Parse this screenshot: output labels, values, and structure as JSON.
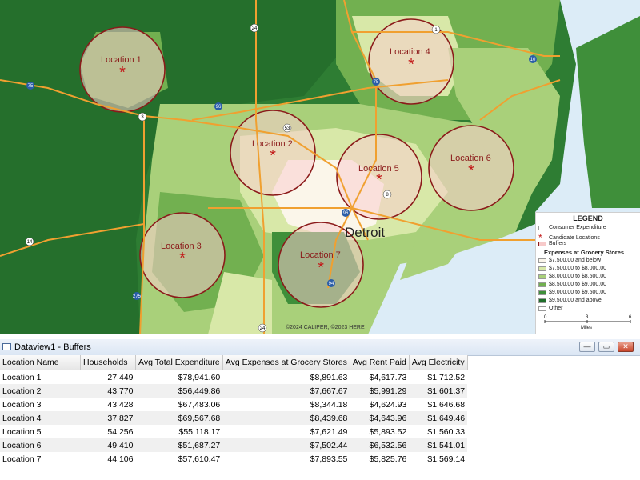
{
  "map": {
    "locations": [
      {
        "label": "Location 1"
      },
      {
        "label": "Location 2"
      },
      {
        "label": "Location 3"
      },
      {
        "label": "Location 4"
      },
      {
        "label": "Location 5"
      },
      {
        "label": "Location 6"
      },
      {
        "label": "Location 7"
      }
    ],
    "city_label": "Detroit",
    "highways": [
      "75",
      "24",
      "96",
      "3",
      "10",
      "1",
      "53",
      "96",
      "14",
      "275",
      "24",
      "75",
      "94",
      "8"
    ],
    "credit": "©2024 CALIPER, ©2023 HERE"
  },
  "legend": {
    "title": "LEGEND",
    "consumer_expenditure": "Consumer Expenditure",
    "candidate_locations": "Candidate Locations",
    "buffers": "Buffers",
    "subtitle": "Expenses at Grocery Stores",
    "classes": [
      {
        "label": "$7,500.00 and below",
        "color": "#fbf6ea"
      },
      {
        "label": "$7,500.00 to $8,000.00",
        "color": "#d8e8a8"
      },
      {
        "label": "$8,000.00 to $8,500.00",
        "color": "#a9d07a"
      },
      {
        "label": "$8,500.00 to $9,000.00",
        "color": "#72b050"
      },
      {
        "label": "$9,000.00 to $9,500.00",
        "color": "#3f8f3a"
      },
      {
        "label": "$9,500.00 and above",
        "color": "#1f6e2a"
      }
    ],
    "other": "Other",
    "scale_ticks": [
      "0",
      "3",
      "6"
    ],
    "scale_unit": "Miles"
  },
  "dataview": {
    "title": "Dataview1 - Buffers",
    "buttons": {
      "minimize": "—",
      "restore": "▭",
      "close": "✕"
    },
    "columns": [
      "Location Name",
      "Households",
      "Avg Total Expenditure",
      "Avg Expenses at Grocery Stores",
      "Avg Rent Paid",
      "Avg Electricity"
    ],
    "rows": [
      [
        "Location 1",
        "27,449",
        "$78,941.60",
        "$8,891.63",
        "$4,617.73",
        "$1,712.52"
      ],
      [
        "Location 2",
        "43,770",
        "$56,449.86",
        "$7,667.67",
        "$5,991.29",
        "$1,601.37"
      ],
      [
        "Location 3",
        "43,428",
        "$67,483.06",
        "$8,344.18",
        "$4,624.93",
        "$1,646.68"
      ],
      [
        "Location 4",
        "37,827",
        "$69,567.68",
        "$8,439.68",
        "$4,643.96",
        "$1,649.46"
      ],
      [
        "Location 5",
        "54,256",
        "$55,118.17",
        "$7,621.49",
        "$5,893.52",
        "$1,560.33"
      ],
      [
        "Location 6",
        "49,410",
        "$51,687.27",
        "$7,502.44",
        "$6,532.56",
        "$1,541.01"
      ],
      [
        "Location 7",
        "44,106",
        "$57,610.47",
        "$7,893.55",
        "$5,825.76",
        "$1,569.14"
      ]
    ]
  }
}
